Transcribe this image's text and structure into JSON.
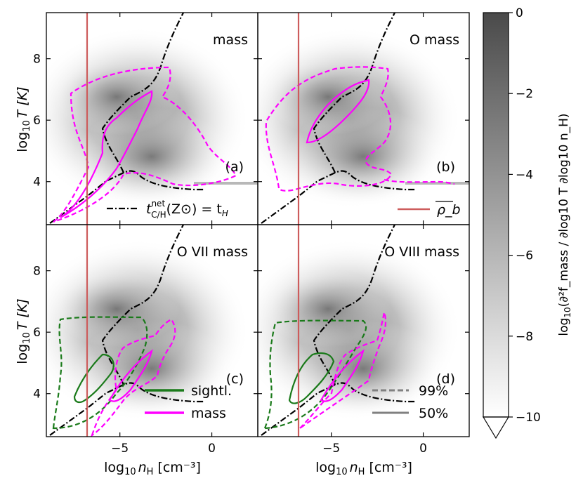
{
  "figure": {
    "colorbar": {
      "label": "log₁₀(∂²f_mass / ∂log₁₀T ∂log₁₀n_H)",
      "label_main": "log",
      "label_sub": "10",
      "label_rest": "(∂²f_mass / ∂log10 T ∂log10 n_H)",
      "ticks": [
        "0",
        "−2",
        "−4",
        "−6",
        "−8",
        "−10"
      ],
      "range": [
        -10,
        0
      ],
      "extend": "min",
      "cmap": [
        "#ffffff",
        "#4a4a4a"
      ]
    },
    "axes": {
      "xlabel": "log10 nH [cm⁻³]",
      "xlabel_main": "log",
      "xlabel_sub": "10",
      "xlabel_n": "n",
      "xlabel_nsub": "H",
      "xlabel_unit": "[cm⁻³]",
      "ylabel_main": "log",
      "ylabel_sub": "10",
      "ylabel_rest": "T [K]",
      "xticks": [
        "−5",
        "0"
      ],
      "yticks": [
        "4",
        "6",
        "8"
      ]
    },
    "panels": [
      {
        "id": "a",
        "title": "mass",
        "letter": "(a)",
        "contour_color": "#ff00ff"
      },
      {
        "id": "b",
        "title": "O mass",
        "letter": "(b)",
        "contour_color": "#ff00ff"
      },
      {
        "id": "c",
        "title": "O VII mass",
        "letter": "(c)",
        "contour_color": "#1a7a1a"
      },
      {
        "id": "d",
        "title": "O VIII mass",
        "letter": "(d)",
        "contour_color": "#1a7a1a"
      }
    ],
    "legends": {
      "cooling": {
        "label_main": "t",
        "label_sup": "net",
        "label_sub": "C/H",
        "label_rest": "(Z⊙) = t",
        "label_end": "H"
      },
      "density": {
        "label": "ρ_b"
      },
      "sample": [
        {
          "label": "sightl.",
          "color": "#1a7a1a"
        },
        {
          "label": "mass",
          "color": "#ff00ff"
        }
      ],
      "levels": [
        {
          "label": "99%",
          "style": "dashed",
          "color": "#808080"
        },
        {
          "label": "50%",
          "style": "solid",
          "color": "#808080"
        }
      ]
    },
    "colors": {
      "density_line": "#cd5c5c",
      "cooling_line": "#000000",
      "magenta": "#ff00ff",
      "green": "#1a7a1a"
    }
  },
  "chart_data": [
    {
      "type": "heatmap",
      "title": "mass",
      "panel": "(a)",
      "xlabel": "log10 nH [cm^-3]",
      "ylabel": "log10 T [K]",
      "xlim": [
        -9,
        2.5
      ],
      "ylim": [
        2.6,
        9.5
      ],
      "xticks": [
        -5,
        0
      ],
      "yticks": [
        4,
        6,
        8
      ],
      "mean_density_log_nH": -6.75,
      "contours": [
        {
          "sample": "mass",
          "levels": [
            "99%",
            "50%"
          ]
        }
      ]
    },
    {
      "type": "heatmap",
      "title": "O mass",
      "panel": "(b)",
      "xlim": [
        -9,
        2.5
      ],
      "ylim": [
        2.6,
        9.5
      ],
      "mean_density_log_nH": -6.75,
      "contours": [
        {
          "sample": "mass",
          "levels": [
            "99%",
            "50%"
          ]
        }
      ]
    },
    {
      "type": "heatmap",
      "title": "O VII mass",
      "panel": "(c)",
      "xlim": [
        -9,
        2.5
      ],
      "ylim": [
        2.6,
        9.5
      ],
      "mean_density_log_nH": -6.75,
      "contours": [
        {
          "sample": "sightl.",
          "levels": [
            "99%",
            "50%"
          ]
        },
        {
          "sample": "mass",
          "levels": [
            "99%",
            "50%"
          ]
        }
      ]
    },
    {
      "type": "heatmap",
      "title": "O VIII mass",
      "panel": "(d)",
      "xlim": [
        -9,
        2.5
      ],
      "ylim": [
        2.6,
        9.5
      ],
      "mean_density_log_nH": -6.75,
      "contours": [
        {
          "sample": "sightl.",
          "levels": [
            "99%",
            "50%"
          ]
        },
        {
          "sample": "mass",
          "levels": [
            "99%",
            "50%"
          ]
        }
      ]
    }
  ]
}
